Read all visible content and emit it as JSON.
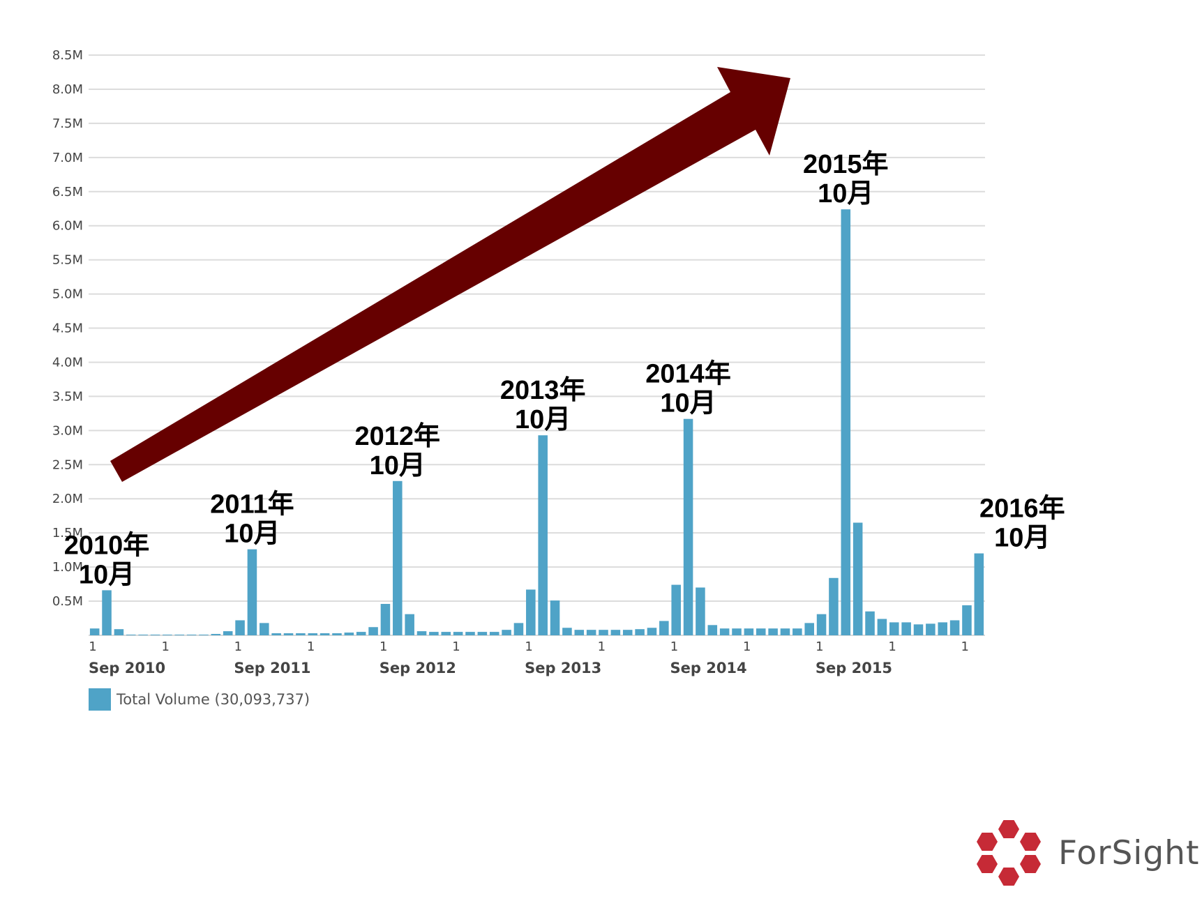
{
  "chart_data": {
    "type": "bar",
    "bar_color": "#4fa3c7",
    "arrow_color": "#660000",
    "ylim": [
      0,
      8500000
    ],
    "y_ticks": [
      "0.5M",
      "1.0M",
      "1.5M",
      "2.0M",
      "2.5M",
      "3.0M",
      "3.5M",
      "4.0M",
      "4.5M",
      "5.0M",
      "5.5M",
      "6.0M",
      "6.5M",
      "7.0M",
      "7.5M",
      "8.0M",
      "8.5M"
    ],
    "y_tick_values": [
      500000,
      1000000,
      1500000,
      2000000,
      2500000,
      3000000,
      3500000,
      4000000,
      4500000,
      5000000,
      5500000,
      6000000,
      6500000,
      7000000,
      7500000,
      8000000,
      8500000
    ],
    "x_minor_tick_label": "1",
    "x_year_labels": [
      "Sep 2010",
      "Sep 2011",
      "Sep 2012",
      "Sep 2013",
      "Sep 2014",
      "Sep 2015"
    ],
    "series": [
      {
        "name": "Total Volume",
        "values": [
          100000,
          660000,
          90000,
          10000,
          10000,
          10000,
          10000,
          10000,
          10000,
          10000,
          20000,
          60000,
          220000,
          1260000,
          180000,
          30000,
          30000,
          30000,
          30000,
          30000,
          30000,
          40000,
          50000,
          120000,
          460000,
          2260000,
          310000,
          60000,
          50000,
          50000,
          50000,
          50000,
          50000,
          50000,
          80000,
          180000,
          670000,
          2930000,
          510000,
          110000,
          80000,
          80000,
          80000,
          80000,
          80000,
          90000,
          110000,
          210000,
          740000,
          3170000,
          700000,
          150000,
          100000,
          100000,
          100000,
          100000,
          100000,
          100000,
          100000,
          180000,
          310000,
          840000,
          6240000,
          1650000,
          350000,
          240000,
          190000,
          190000,
          160000,
          170000,
          190000,
          220000,
          440000,
          1200000
        ]
      }
    ],
    "annotations": [
      {
        "line1": "2010年",
        "line2": "10月",
        "bar": 1
      },
      {
        "line1": "2011年",
        "line2": "10月",
        "bar": 13
      },
      {
        "line1": "2012年",
        "line2": "10月",
        "bar": 25
      },
      {
        "line1": "2013年",
        "line2": "10月",
        "bar": 37
      },
      {
        "line1": "2014年",
        "line2": "10月",
        "bar": 49
      },
      {
        "line1": "2015年",
        "line2": "10月",
        "bar": 62
      },
      {
        "line1": "2016年",
        "line2": "10月",
        "bar": 73
      }
    ]
  },
  "legend": {
    "label": "Total Volume (30,093,737)"
  },
  "brand": {
    "name": "ForSight",
    "logo_color": "#c62a36"
  }
}
